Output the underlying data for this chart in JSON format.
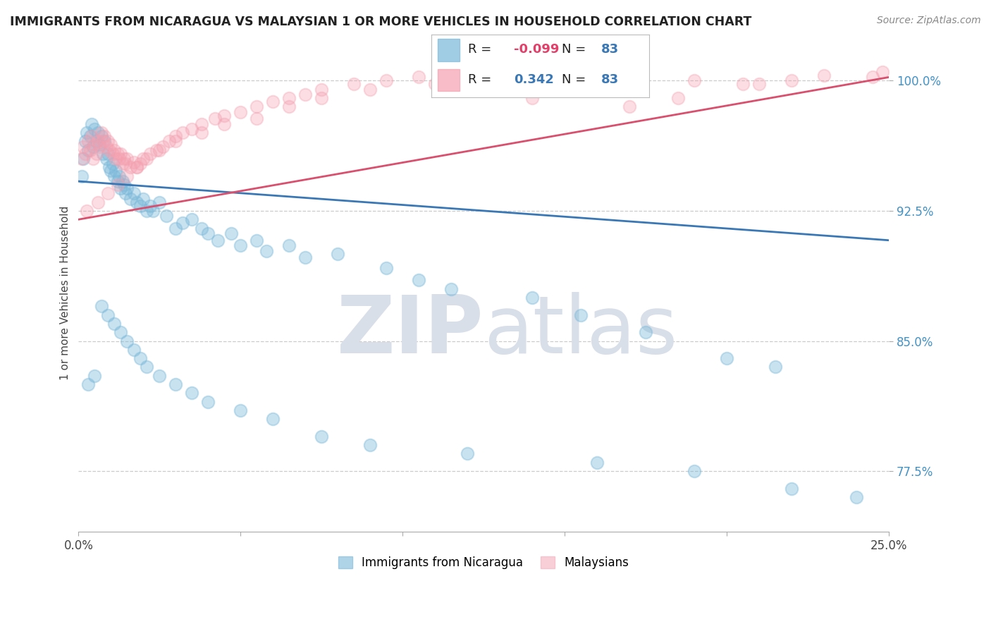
{
  "title": "IMMIGRANTS FROM NICARAGUA VS MALAYSIAN 1 OR MORE VEHICLES IN HOUSEHOLD CORRELATION CHART",
  "source": "Source: ZipAtlas.com",
  "legend_blue_r": "-0.099",
  "legend_blue_n": "83",
  "legend_pink_r": "0.342",
  "legend_pink_n": "83",
  "legend_blue_label": "Immigrants from Nicaragua",
  "legend_pink_label": "Malaysians",
  "blue_color": "#7ab8d9",
  "pink_color": "#f4a0b0",
  "blue_line_color": "#3a78b5",
  "pink_line_color": "#d94f6e",
  "watermark_zip": "ZIP",
  "watermark_atlas": "atlas",
  "watermark_color": "#d8dfe8",
  "background_color": "#ffffff",
  "xmin": 0.0,
  "xmax": 25.0,
  "ymin": 74.0,
  "ymax": 101.5,
  "blue_line_x0": 0.0,
  "blue_line_y0": 94.2,
  "blue_line_x1": 25.0,
  "blue_line_y1": 90.8,
  "pink_line_x0": 0.0,
  "pink_line_y0": 92.0,
  "pink_line_x1": 25.0,
  "pink_line_y1": 100.2,
  "blue_scatter_x": [
    0.1,
    0.15,
    0.2,
    0.25,
    0.3,
    0.35,
    0.4,
    0.45,
    0.5,
    0.55,
    0.6,
    0.65,
    0.7,
    0.75,
    0.8,
    0.85,
    0.9,
    0.95,
    1.0,
    1.05,
    1.1,
    1.15,
    1.2,
    1.25,
    1.3,
    1.35,
    1.4,
    1.45,
    1.5,
    1.6,
    1.7,
    1.8,
    1.9,
    2.0,
    2.1,
    2.2,
    2.3,
    2.5,
    2.7,
    3.0,
    3.2,
    3.5,
    3.8,
    4.0,
    4.3,
    4.7,
    5.0,
    5.5,
    5.8,
    6.5,
    7.0,
    8.0,
    9.5,
    10.5,
    11.5,
    14.0,
    15.5,
    17.5,
    20.0,
    21.5,
    0.3,
    0.5,
    0.7,
    0.9,
    1.1,
    1.3,
    1.5,
    1.7,
    1.9,
    2.1,
    2.5,
    3.0,
    3.5,
    4.0,
    5.0,
    6.0,
    7.5,
    9.0,
    12.0,
    16.0,
    19.0,
    22.0,
    24.0
  ],
  "blue_scatter_y": [
    94.5,
    95.5,
    96.5,
    97.0,
    96.0,
    96.8,
    97.5,
    96.2,
    97.2,
    96.5,
    97.0,
    96.3,
    96.8,
    95.8,
    96.5,
    95.5,
    95.8,
    95.0,
    94.8,
    95.2,
    94.5,
    94.8,
    94.2,
    94.5,
    93.8,
    94.2,
    94.0,
    93.5,
    93.8,
    93.2,
    93.5,
    93.0,
    92.8,
    93.2,
    92.5,
    92.8,
    92.5,
    93.0,
    92.2,
    91.5,
    91.8,
    92.0,
    91.5,
    91.2,
    90.8,
    91.2,
    90.5,
    90.8,
    90.2,
    90.5,
    89.8,
    90.0,
    89.2,
    88.5,
    88.0,
    87.5,
    86.5,
    85.5,
    84.0,
    83.5,
    82.5,
    83.0,
    87.0,
    86.5,
    86.0,
    85.5,
    85.0,
    84.5,
    84.0,
    83.5,
    83.0,
    82.5,
    82.0,
    81.5,
    81.0,
    80.5,
    79.5,
    79.0,
    78.5,
    78.0,
    77.5,
    76.5,
    76.0
  ],
  "pink_scatter_x": [
    0.1,
    0.15,
    0.2,
    0.3,
    0.35,
    0.4,
    0.45,
    0.5,
    0.55,
    0.6,
    0.65,
    0.7,
    0.75,
    0.8,
    0.85,
    0.9,
    0.95,
    1.0,
    1.05,
    1.1,
    1.15,
    1.2,
    1.25,
    1.3,
    1.35,
    1.4,
    1.45,
    1.5,
    1.6,
    1.7,
    1.8,
    1.9,
    2.0,
    2.2,
    2.4,
    2.6,
    2.8,
    3.0,
    3.2,
    3.5,
    3.8,
    4.2,
    4.5,
    5.0,
    5.5,
    6.0,
    6.5,
    7.0,
    7.5,
    8.5,
    9.5,
    10.5,
    11.5,
    12.5,
    14.0,
    15.5,
    17.0,
    18.5,
    20.5,
    22.0,
    24.5,
    0.25,
    0.6,
    0.9,
    1.2,
    1.5,
    1.8,
    2.1,
    2.5,
    3.0,
    3.8,
    4.5,
    5.5,
    6.5,
    7.5,
    9.0,
    11.0,
    13.0,
    16.0,
    19.0,
    21.0,
    23.0,
    24.8
  ],
  "pink_scatter_y": [
    95.5,
    96.2,
    95.8,
    96.5,
    96.0,
    96.8,
    95.5,
    96.3,
    95.8,
    96.5,
    96.2,
    97.0,
    96.5,
    96.8,
    96.2,
    96.5,
    96.0,
    96.3,
    95.8,
    96.0,
    95.5,
    95.8,
    95.5,
    95.8,
    95.2,
    95.5,
    95.2,
    95.5,
    95.0,
    95.3,
    95.0,
    95.2,
    95.5,
    95.8,
    96.0,
    96.2,
    96.5,
    96.8,
    97.0,
    97.2,
    97.5,
    97.8,
    98.0,
    98.2,
    98.5,
    98.8,
    99.0,
    99.2,
    99.5,
    99.8,
    100.0,
    100.2,
    100.3,
    100.4,
    99.0,
    99.5,
    98.5,
    99.0,
    99.8,
    100.0,
    100.2,
    92.5,
    93.0,
    93.5,
    94.0,
    94.5,
    95.0,
    95.5,
    96.0,
    96.5,
    97.0,
    97.5,
    97.8,
    98.5,
    99.0,
    99.5,
    99.8,
    100.0,
    100.2,
    100.0,
    99.8,
    100.3,
    100.5
  ]
}
